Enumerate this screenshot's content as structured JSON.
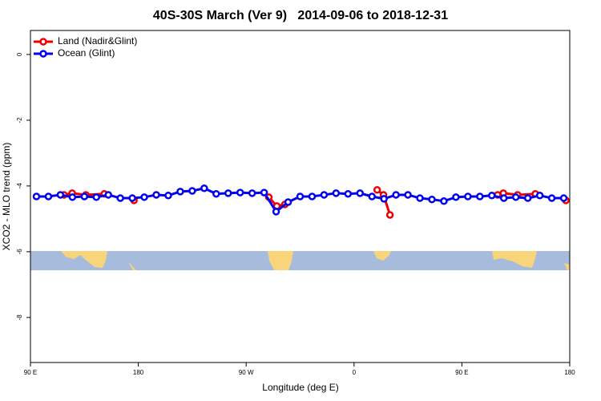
{
  "chart_data": {
    "type": "line",
    "title": "40S-30S March (Ver 9)   2014-09-06 to 2018-12-31",
    "xlabel": "Longitude (deg E)",
    "ylabel": "XCO2 - MLO trend (ppm)",
    "xlim": [
      90,
      540
    ],
    "xticks": [
      {
        "value": 90,
        "label": "90 E"
      },
      180,
      {
        "value": 270,
        "label": "90 W"
      },
      {
        "value": 360,
        "label": "0"
      },
      {
        "value": 450,
        "label": "90 E"
      },
      {
        "value": 540,
        "label": "180"
      }
    ],
    "ylim": [
      -9.37,
      0.73
    ],
    "yticks": [
      0,
      -2,
      -4,
      -6,
      -8
    ],
    "legend": "top-left",
    "series": [
      {
        "name": "Land (Nadir&Glint)",
        "color": "#ee0000",
        "x": [
          118,
          124.8,
          136.2,
          151.6,
          null,
          176.4,
          null,
          288.9,
          295.6,
          302.3,
          null,
          379.3,
          384.6,
          390,
          null,
          479.8,
          484.6,
          496.5,
          511.3,
          null,
          536.7
        ],
        "values": [
          -4.27,
          -4.22,
          -4.27,
          -4.24,
          null,
          -4.44,
          null,
          -4.34,
          -4.61,
          -4.56,
          null,
          -4.12,
          -4.27,
          -4.88,
          null,
          -4.27,
          -4.22,
          -4.27,
          -4.24,
          null,
          -4.44
        ]
      },
      {
        "name": "Ocean (Glint)",
        "color": "#0000ee",
        "x": [
          95,
          105,
          115,
          125,
          135,
          145,
          155,
          165,
          175,
          185,
          195,
          205,
          215,
          225,
          235,
          245,
          255,
          265,
          275,
          285,
          295,
          305,
          315,
          325,
          335,
          345,
          355,
          365,
          375,
          385,
          395,
          405,
          415,
          425,
          435,
          445,
          455,
          465,
          475,
          485,
          495,
          505,
          515,
          525,
          535
        ],
        "values": [
          -4.32,
          -4.32,
          -4.27,
          -4.34,
          -4.32,
          -4.34,
          -4.27,
          -4.37,
          -4.37,
          -4.34,
          -4.27,
          -4.29,
          -4.17,
          -4.15,
          -4.07,
          -4.24,
          -4.22,
          -4.2,
          -4.22,
          -4.2,
          -4.78,
          -4.49,
          -4.32,
          -4.32,
          -4.27,
          -4.22,
          -4.24,
          -4.22,
          -4.32,
          -4.39,
          -4.27,
          -4.27,
          -4.37,
          -4.41,
          -4.46,
          -4.34,
          -4.32,
          -4.32,
          -4.29,
          -4.37,
          -4.34,
          -4.37,
          -4.29,
          -4.37,
          -4.37
        ]
      }
    ]
  }
}
